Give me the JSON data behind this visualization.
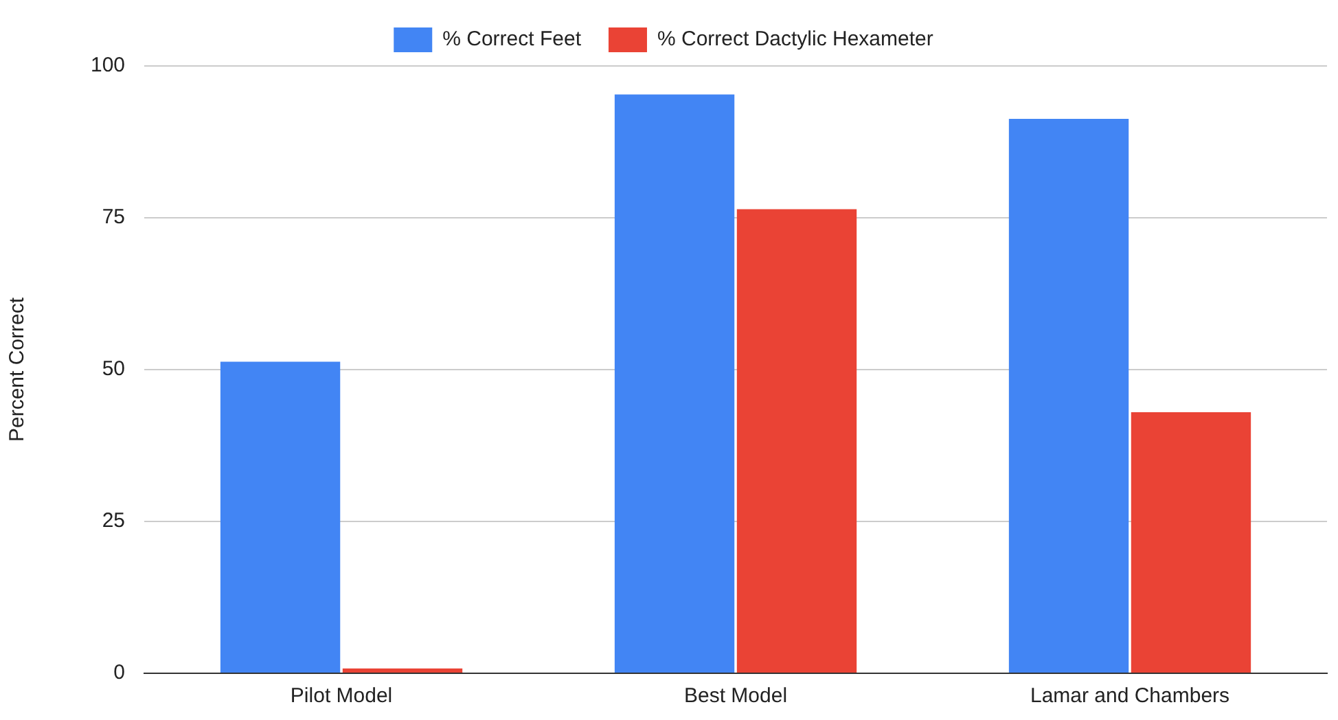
{
  "chart_data": {
    "type": "bar",
    "ylabel": "Percent Correct",
    "categories": [
      "Pilot Model",
      "Best Model",
      "Lamar and Chambers"
    ],
    "series": [
      {
        "name": "% Correct Feet",
        "color": "#4285f4",
        "values": [
          51.3,
          95.3,
          91.3
        ]
      },
      {
        "name": "% Correct Dactylic Hexameter",
        "color": "#ea4335",
        "values": [
          0.8,
          76.4,
          43
        ]
      }
    ],
    "ylim": [
      0,
      100
    ],
    "yticks": [
      0,
      25,
      50,
      75,
      100
    ],
    "grid": "y",
    "legend": "top"
  }
}
